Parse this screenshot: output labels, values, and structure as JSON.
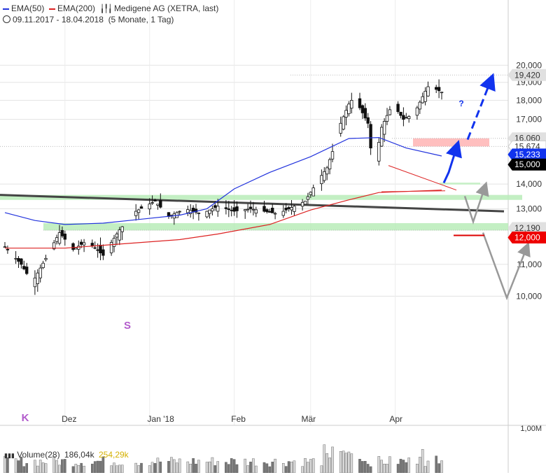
{
  "header": {
    "ema50_label": "EMA(50)",
    "ema200_label": "EMA(200)",
    "instrument": "Medigene AG (XETRA, last)",
    "period": "09.11.2017 - 18.04.2018",
    "period_detail": "(5 Monate, 1 Tag)",
    "colors": {
      "ema50": "#2233dd",
      "ema200": "#dd2222"
    }
  },
  "chart_data": {
    "type": "candlestick",
    "x_tick_labels": [
      "Dez",
      "Jan '18",
      "Feb",
      "Mär",
      "Apr"
    ],
    "y_tick_labels": [
      "20,000",
      "19,000",
      "18,000",
      "17,000",
      "14,000",
      "13,000",
      "11,000",
      "10,000"
    ],
    "ylim": [
      10,
      20
    ],
    "price_tags": [
      {
        "label": "19,420",
        "value": 19.42,
        "style": "gray"
      },
      {
        "label": "16,060",
        "value": 16.06,
        "style": "gray"
      },
      {
        "label": "15,674",
        "value": 15.674,
        "style": "white"
      },
      {
        "label": "15,233",
        "value": 15.233,
        "style": "blue"
      },
      {
        "label": "15,000",
        "value": 15.0,
        "style": "black"
      },
      {
        "label": "12,190",
        "value": 12.19,
        "style": "gray"
      },
      {
        "label": "12,000",
        "value": 12.0,
        "style": "red"
      }
    ],
    "annotations": [
      "K",
      "S",
      "?"
    ],
    "ema50": [
      [
        "2017-11-09",
        12.85
      ],
      [
        "2017-11-20",
        12.55
      ],
      [
        "2017-12-01",
        12.4
      ],
      [
        "2017-12-15",
        12.45
      ],
      [
        "2017-12-29",
        12.6
      ],
      [
        "2018-01-12",
        12.75
      ],
      [
        "2018-01-22",
        13.0
      ],
      [
        "2018-02-01",
        13.8
      ],
      [
        "2018-02-14",
        14.5
      ],
      [
        "2018-03-01",
        15.2
      ],
      [
        "2018-03-15",
        16.05
      ],
      [
        "2018-03-26",
        16.1
      ],
      [
        "2018-04-05",
        15.6
      ],
      [
        "2018-04-18",
        15.23
      ]
    ],
    "ema200": [
      [
        "2017-11-09",
        11.55
      ],
      [
        "2017-12-01",
        11.55
      ],
      [
        "2017-12-15",
        11.65
      ],
      [
        "2018-01-12",
        11.85
      ],
      [
        "2018-01-26",
        12.05
      ],
      [
        "2018-02-14",
        12.4
      ],
      [
        "2018-03-01",
        12.95
      ],
      [
        "2018-03-15",
        13.35
      ],
      [
        "2018-03-26",
        13.65
      ],
      [
        "2018-04-18",
        13.75
      ]
    ],
    "volume": {
      "label": "Volume(28)",
      "value": "186,04k",
      "average": "254,29k",
      "axis_label": "1,00M",
      "colors": {
        "value": "#555555",
        "average": "#d4b000"
      }
    }
  },
  "legend_swatch_icon": "candlestick-icon"
}
